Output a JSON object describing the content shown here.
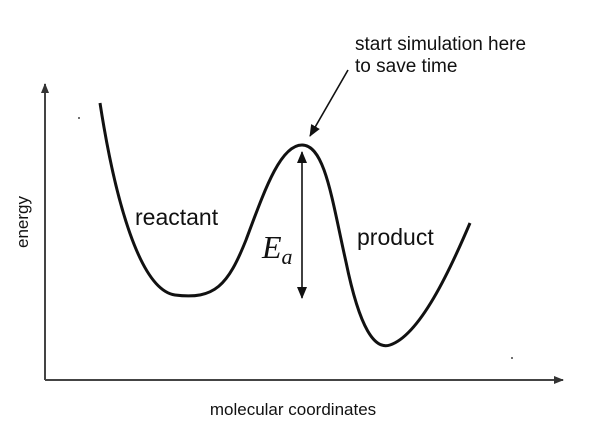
{
  "axes": {
    "y_label": "energy",
    "x_label": "molecular coordinates"
  },
  "annotation": {
    "lines": [
      "start simulation here",
      "to save time"
    ]
  },
  "labels": {
    "reactant": "reactant",
    "product": "product"
  },
  "barrier": {
    "symbol": "E",
    "subscript": "a"
  }
}
